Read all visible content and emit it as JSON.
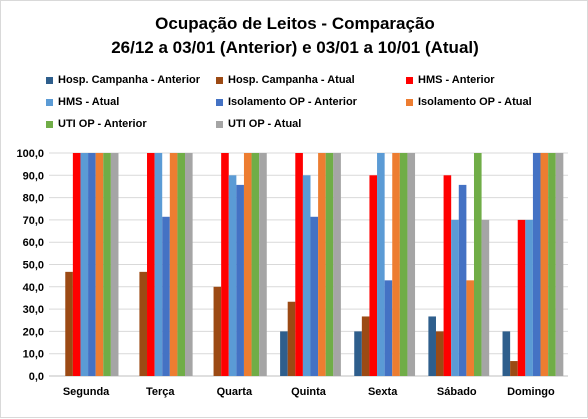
{
  "chart_data": {
    "type": "bar",
    "title": "Ocupação de Leitos - Comparação",
    "subtitle": "26/12 a 03/01 (Anterior) e 03/01 a 10/01 (Atual)",
    "categories": [
      "Segunda",
      "Terça",
      "Quarta",
      "Quinta",
      "Sexta",
      "Sábado",
      "Domingo"
    ],
    "ylim": [
      0,
      100
    ],
    "yticks": [
      "0,0",
      "10,0",
      "20,0",
      "30,0",
      "40,0",
      "50,0",
      "60,0",
      "70,0",
      "80,0",
      "90,0",
      "100,0"
    ],
    "grid": true,
    "legend_position": "top",
    "series": [
      {
        "name": "Hosp. Campanha - Anterior",
        "color": "#2e5e8c",
        "values": [
          0,
          0,
          0,
          20,
          20,
          26.7,
          20
        ]
      },
      {
        "name": "Hosp. Campanha - Atual",
        "color": "#9c4a14",
        "values": [
          46.7,
          46.7,
          40,
          33.3,
          26.7,
          20,
          6.7
        ]
      },
      {
        "name": "HMS - Anterior",
        "color": "#ff0000",
        "values": [
          100,
          100,
          100,
          100,
          90,
          90,
          70
        ]
      },
      {
        "name": "HMS - Atual",
        "color": "#5b9bd5",
        "values": [
          100,
          100,
          90,
          90,
          100,
          70,
          70
        ]
      },
      {
        "name": "Isolamento OP - Anterior",
        "color": "#4472c4",
        "values": [
          100,
          71.4,
          85.7,
          71.4,
          42.9,
          85.7,
          100
        ]
      },
      {
        "name": "Isolamento OP - Atual",
        "color": "#ed7d31",
        "values": [
          100,
          100,
          100,
          100,
          100,
          42.9,
          100
        ]
      },
      {
        "name": "UTI OP - Anterior",
        "color": "#70ad47",
        "values": [
          100,
          100,
          100,
          100,
          100,
          100,
          100
        ]
      },
      {
        "name": "UTI OP - Atual",
        "color": "#a5a5a5",
        "values": [
          100,
          100,
          100,
          100,
          100,
          70,
          100
        ]
      }
    ]
  }
}
